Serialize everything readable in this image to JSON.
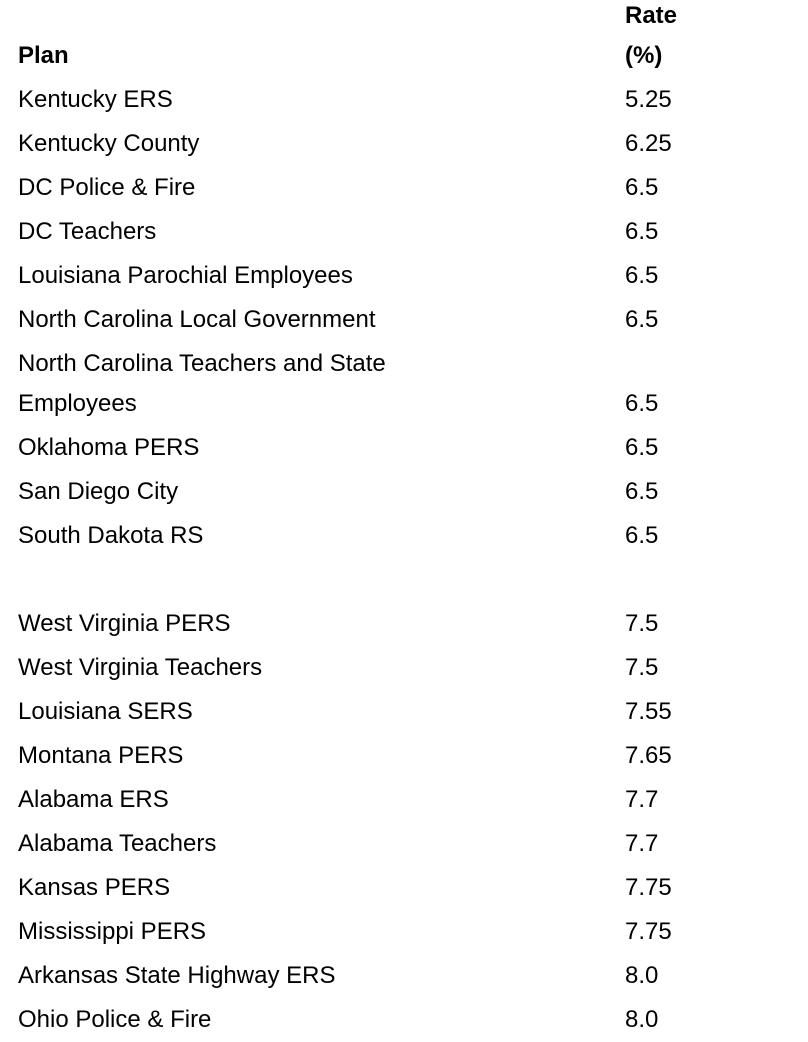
{
  "table": {
    "header": [
      "Plan",
      "Rate (%)"
    ],
    "groups": [
      {
        "rows": [
          [
            "Kentucky ERS",
            "5.25"
          ],
          [
            "Kentucky County",
            "6.25"
          ],
          [
            "DC Police & Fire",
            "6.5"
          ],
          [
            "DC Teachers",
            "6.5"
          ],
          [
            "Louisiana Parochial Employees",
            "6.5"
          ],
          [
            "North Carolina Local Government",
            "6.5"
          ],
          [
            "North Carolina Teachers and State Employees",
            "6.5"
          ],
          [
            "Oklahoma PERS",
            "6.5"
          ],
          [
            "San Diego City",
            "6.5"
          ],
          [
            "South Dakota RS",
            "6.5"
          ]
        ]
      },
      {
        "rows": [
          [
            "West Virginia PERS",
            "7.5"
          ],
          [
            "West Virginia Teachers",
            "7.5"
          ],
          [
            "Louisiana SERS",
            "7.55"
          ],
          [
            "Montana PERS",
            "7.65"
          ],
          [
            "Alabama ERS",
            "7.7"
          ],
          [
            "Alabama Teachers",
            "7.7"
          ],
          [
            "Kansas PERS",
            "7.75"
          ],
          [
            "Mississippi PERS",
            "7.75"
          ],
          [
            "Arkansas State Highway ERS",
            "8.0"
          ],
          [
            "Ohio Police & Fire",
            "8.0"
          ]
        ]
      }
    ]
  }
}
